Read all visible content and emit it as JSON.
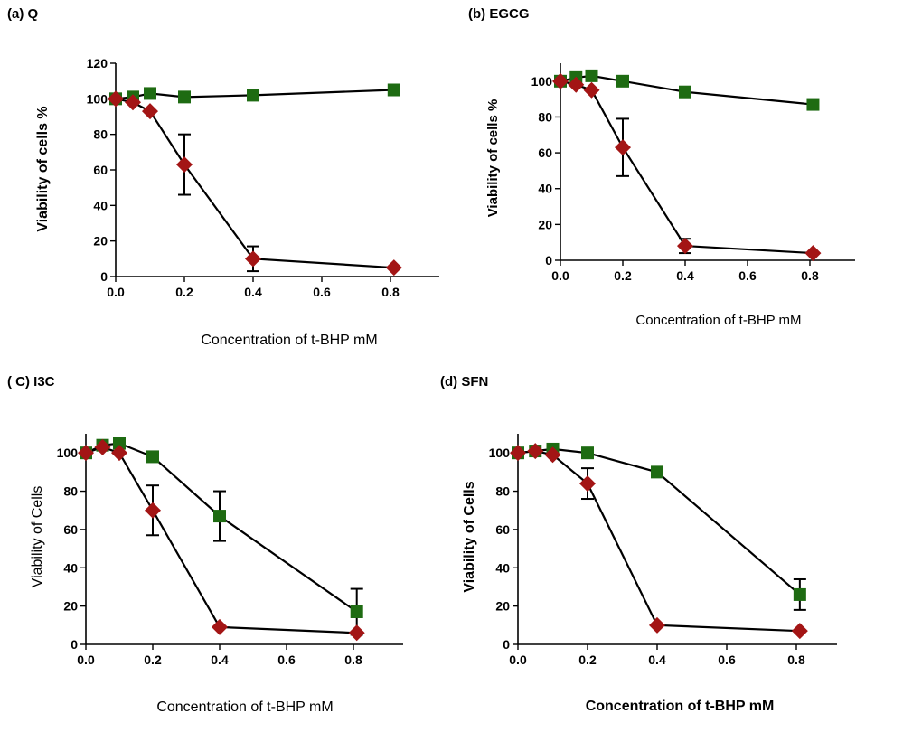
{
  "colors": {
    "series_green": "#1e6b12",
    "series_red": "#a31515",
    "line": "#000000",
    "axis": "#000000"
  },
  "chart_data": [
    {
      "panel": "a",
      "type": "line",
      "title": "(a) Q",
      "xlabel": "Concentration of t-BHP mM",
      "ylabel": "Viability of cells %",
      "xlim": [
        0,
        0.9
      ],
      "ylim": [
        0,
        120
      ],
      "xticks": [
        "0.0",
        "0.2",
        "0.4",
        "0.6",
        "0.8"
      ],
      "yticks": [
        "0",
        "20",
        "40",
        "60",
        "80",
        "100",
        "120"
      ],
      "grid": false,
      "series": [
        {
          "color": "#1e6b12",
          "marker": "square",
          "x": [
            0,
            0.05,
            0.1,
            0.2,
            0.4,
            0.81
          ],
          "y": [
            100,
            101,
            103,
            101,
            102,
            105
          ],
          "err": [
            0,
            0,
            0,
            0,
            0,
            0
          ]
        },
        {
          "color": "#a31515",
          "marker": "diamond",
          "x": [
            0,
            0.05,
            0.1,
            0.2,
            0.4,
            0.81
          ],
          "y": [
            100,
            98,
            93,
            63,
            10,
            5
          ],
          "err": [
            0,
            0,
            0,
            17,
            7,
            0
          ]
        }
      ]
    },
    {
      "panel": "b",
      "type": "line",
      "title": "(b) EGCG",
      "xlabel": "Concentration of t-BHP mM",
      "ylabel": "Viability of cells %",
      "xlim": [
        0,
        0.95
      ],
      "ylim": [
        0,
        110
      ],
      "xticks": [
        "0.0",
        "0.2",
        "0.4",
        "0.6",
        "0.8"
      ],
      "yticks": [
        "0",
        "20",
        "40",
        "60",
        "80",
        "100"
      ],
      "grid": false,
      "series": [
        {
          "color": "#1e6b12",
          "marker": "square",
          "x": [
            0,
            0.05,
            0.1,
            0.2,
            0.4,
            0.81
          ],
          "y": [
            100,
            102,
            103,
            100,
            94,
            87
          ],
          "err": [
            0,
            0,
            0,
            0,
            0,
            0
          ]
        },
        {
          "color": "#a31515",
          "marker": "diamond",
          "x": [
            0,
            0.05,
            0.1,
            0.2,
            0.4,
            0.81
          ],
          "y": [
            100,
            98,
            95,
            63,
            8,
            4
          ],
          "err": [
            0,
            0,
            0,
            16,
            4,
            0
          ]
        }
      ]
    },
    {
      "panel": "c",
      "type": "line",
      "title": "( C) I3C",
      "xlabel": "Concentration of t-BHP mM",
      "ylabel": "Viability of Cells",
      "xlim": [
        0,
        0.92
      ],
      "ylim": [
        0,
        110
      ],
      "xticks": [
        "0.0",
        "0.2",
        "0.4",
        "0.6",
        "0.8"
      ],
      "yticks": [
        "0",
        "20",
        "40",
        "60",
        "80",
        "100"
      ],
      "grid": false,
      "series": [
        {
          "color": "#1e6b12",
          "marker": "square",
          "x": [
            0,
            0.05,
            0.1,
            0.2,
            0.4,
            0.81
          ],
          "y": [
            100,
            104,
            105,
            98,
            67,
            17
          ],
          "err": [
            0,
            0,
            0,
            0,
            13,
            12
          ]
        },
        {
          "color": "#a31515",
          "marker": "diamond",
          "x": [
            0,
            0.05,
            0.1,
            0.2,
            0.4,
            0.81
          ],
          "y": [
            100,
            103,
            100,
            70,
            9,
            6
          ],
          "err": [
            0,
            0,
            0,
            13,
            0,
            0
          ]
        }
      ]
    },
    {
      "panel": "d",
      "type": "line",
      "title": "(d) SFN",
      "xlabel": "Concentration of t-BHP mM",
      "ylabel": "Viability of Cells",
      "xlim": [
        0,
        0.95
      ],
      "ylim": [
        0,
        110
      ],
      "xticks": [
        "0.0",
        "0.2",
        "0.4",
        "0.6",
        "0.8"
      ],
      "yticks": [
        "0",
        "20",
        "40",
        "60",
        "80",
        "100"
      ],
      "grid": false,
      "series": [
        {
          "color": "#1e6b12",
          "marker": "square",
          "x": [
            0,
            0.05,
            0.1,
            0.2,
            0.4,
            0.81
          ],
          "y": [
            100,
            101,
            102,
            100,
            90,
            26
          ],
          "err": [
            0,
            0,
            0,
            0,
            0,
            8
          ]
        },
        {
          "color": "#a31515",
          "marker": "diamond",
          "x": [
            0,
            0.05,
            0.1,
            0.2,
            0.4,
            0.81
          ],
          "y": [
            100,
            101,
            99,
            84,
            10,
            7
          ],
          "err": [
            0,
            0,
            0,
            8,
            0,
            0
          ]
        }
      ]
    }
  ]
}
